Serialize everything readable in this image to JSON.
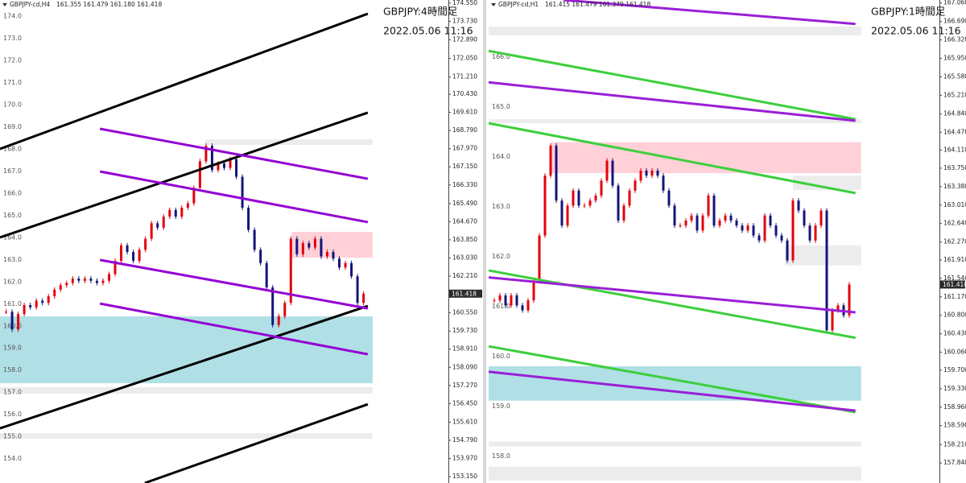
{
  "chart_data": [
    {
      "type": "candlestick",
      "symbol": "GBPJPY-cd,H4",
      "ohlc": "161.355 161.479 161.180 161.418",
      "title": "GBPJPY:4時間足",
      "subtitle": "2022.05.06 11:16",
      "xlim": [
        -1,
        73
      ],
      "ylim": [
        152.86,
        174.69
      ],
      "up_color": "#e3000b",
      "down_color": "#14147a",
      "closes": [
        160.6,
        159.8,
        160.5,
        160.9,
        160.8,
        161.1,
        161.0,
        161.3,
        161.6,
        161.8,
        161.9,
        162.1,
        162.0,
        162.1,
        162.0,
        161.9,
        162.0,
        162.3,
        162.9,
        163.6,
        163.3,
        162.9,
        163.4,
        163.9,
        164.6,
        164.4,
        164.9,
        165.2,
        164.9,
        165.3,
        165.5,
        166.2,
        167.4,
        168.1,
        167.0,
        167.3,
        167.1,
        167.5,
        166.7,
        165.3,
        164.3,
        163.4,
        162.8,
        161.7,
        160.0,
        160.4,
        161.0,
        163.9,
        163.2,
        163.7,
        163.5,
        163.9,
        163.1,
        163.3,
        163.0,
        162.6,
        162.8,
        162.2,
        161.0,
        161.418
      ],
      "yticks": [
        {
          "value": 174.55,
          "label": "174.550"
        },
        {
          "value": 173.73,
          "label": "173.730"
        },
        {
          "value": 172.89,
          "label": "172.890"
        },
        {
          "value": 172.05,
          "label": "172.050"
        },
        {
          "value": 171.21,
          "label": "171.210"
        },
        {
          "value": 170.43,
          "label": "170.430"
        },
        {
          "value": 169.61,
          "label": "169.610"
        },
        {
          "value": 168.79,
          "label": "168.790"
        },
        {
          "value": 167.97,
          "label": "167.970"
        },
        {
          "value": 167.15,
          "label": "167.150"
        },
        {
          "value": 166.33,
          "label": "166.330"
        },
        {
          "value": 165.49,
          "label": "165.490"
        },
        {
          "value": 164.67,
          "label": "164.670"
        },
        {
          "value": 163.85,
          "label": "163.850"
        },
        {
          "value": 163.03,
          "label": "163.030"
        },
        {
          "value": 162.21,
          "label": "162.210"
        },
        {
          "value": 160.55,
          "label": "160.550"
        },
        {
          "value": 159.73,
          "label": "159.730"
        },
        {
          "value": 158.91,
          "label": "158.910"
        },
        {
          "value": 158.09,
          "label": "158.090"
        },
        {
          "value": 157.27,
          "label": "157.270"
        },
        {
          "value": 156.45,
          "label": "156.450"
        },
        {
          "value": 155.61,
          "label": "155.610"
        },
        {
          "value": 154.79,
          "label": "154.790"
        },
        {
          "value": 153.97,
          "label": "153.970"
        },
        {
          "value": 153.15,
          "label": "153.150"
        }
      ],
      "level_labels": [
        {
          "value": 174,
          "label": "174.0"
        },
        {
          "value": 173,
          "label": "173.0"
        },
        {
          "value": 172,
          "label": "172.0"
        },
        {
          "value": 171,
          "label": "171.0"
        },
        {
          "value": 170,
          "label": "170.0"
        },
        {
          "value": 169,
          "label": "169.0"
        },
        {
          "value": 168,
          "label": "168.0"
        },
        {
          "value": 167,
          "label": "167.0"
        },
        {
          "value": 166,
          "label": "166.0"
        },
        {
          "value": 165,
          "label": "165.0"
        },
        {
          "value": 164,
          "label": "164.0"
        },
        {
          "value": 163,
          "label": "163.0"
        },
        {
          "value": 162,
          "label": "162.0"
        },
        {
          "value": 161,
          "label": "161.0"
        },
        {
          "value": 160,
          "label": "160.0"
        },
        {
          "value": 159,
          "label": "159.0"
        },
        {
          "value": 158,
          "label": "158.0"
        },
        {
          "value": 157,
          "label": "157.0"
        },
        {
          "value": 156,
          "label": "156.0"
        },
        {
          "value": 155,
          "label": "155.0"
        },
        {
          "value": 154,
          "label": "154.0"
        }
      ],
      "current": {
        "value": 161.418,
        "label": "161.418"
      },
      "zones": [
        {
          "color": "#ffd0d8",
          "x": [
            47.1,
            60.5
          ],
          "y": [
            164.21,
            163.04
          ]
        },
        {
          "color": "#b0dfe5",
          "x": [
            -1,
            60.5
          ],
          "y": [
            160.39,
            157.37
          ]
        },
        {
          "color": "#ececec",
          "x": [
            32.9,
            60.5
          ],
          "y": [
            168.39,
            168.14
          ]
        },
        {
          "color": "#ececec",
          "x": [
            -1,
            60.5
          ],
          "y": [
            157.19,
            156.9
          ]
        },
        {
          "color": "#ececec",
          "x": [
            -1,
            60.5
          ],
          "y": [
            155.11,
            154.86
          ]
        }
      ],
      "lines": [
        {
          "color": "#000000",
          "x": [
            -1,
            59.7
          ],
          "y": [
            167.96,
            174.07
          ]
        },
        {
          "color": "#000000",
          "x": [
            -1,
            59.7
          ],
          "y": [
            163.96,
            169.6
          ]
        },
        {
          "color": "#000000",
          "x": [
            -1,
            59.7
          ],
          "y": [
            155.33,
            160.86
          ]
        },
        {
          "color": "#000000",
          "x": [
            22.9,
            59.7
          ],
          "y": [
            152.86,
            156.42
          ]
        },
        {
          "color": "#9400d3",
          "x": [
            15.5,
            59.7
          ],
          "y": [
            168.87,
            166.61
          ]
        },
        {
          "color": "#9400d3",
          "x": [
            15.5,
            59.7
          ],
          "y": [
            166.94,
            164.65
          ]
        },
        {
          "color": "#9400d3",
          "x": [
            15.5,
            59.7
          ],
          "y": [
            162.94,
            160.75
          ]
        },
        {
          "color": "#9400d3",
          "x": [
            15.5,
            59.7
          ],
          "y": [
            160.97,
            158.68
          ]
        }
      ]
    },
    {
      "type": "candlestick",
      "symbol": "GBPJPY-cd,H1",
      "ohlc": "161.415 161.479 161.379 161.418",
      "title": "GBPJPY:1時間足",
      "subtitle": "2022.05.06 11:16",
      "xlim": [
        -1,
        79
      ],
      "ylim": [
        157.44,
        167.12
      ],
      "up_color": "#e3000b",
      "down_color": "#14147a",
      "closes": [
        161.1,
        161.2,
        161.0,
        161.2,
        161.0,
        160.9,
        161.1,
        161.5,
        162.4,
        163.6,
        164.2,
        163.1,
        162.6,
        163.0,
        163.3,
        163.0,
        163.0,
        163.1,
        163.2,
        163.5,
        163.9,
        163.4,
        162.7,
        163.0,
        163.3,
        163.5,
        163.7,
        163.6,
        163.7,
        163.6,
        163.3,
        163.0,
        162.6,
        162.6,
        162.7,
        162.8,
        162.5,
        162.8,
        163.2,
        162.6,
        162.7,
        162.8,
        162.7,
        162.6,
        162.5,
        162.6,
        162.4,
        162.3,
        162.8,
        162.6,
        162.4,
        162.3,
        161.9,
        163.1,
        162.9,
        162.6,
        162.3,
        162.6,
        162.9,
        160.5,
        160.9,
        161.0,
        160.8,
        161.418
      ],
      "yticks": [
        {
          "value": 167.06,
          "label": "167.060"
        },
        {
          "value": 166.69,
          "label": "166.690"
        },
        {
          "value": 166.32,
          "label": "166.320"
        },
        {
          "value": 165.95,
          "label": "165.950"
        },
        {
          "value": 165.58,
          "label": "165.580"
        },
        {
          "value": 165.21,
          "label": "165.210"
        },
        {
          "value": 164.84,
          "label": "164.840"
        },
        {
          "value": 164.47,
          "label": "164.470"
        },
        {
          "value": 164.11,
          "label": "164.110"
        },
        {
          "value": 163.75,
          "label": "163.750"
        },
        {
          "value": 163.38,
          "label": "163.380"
        },
        {
          "value": 163.01,
          "label": "163.010"
        },
        {
          "value": 162.64,
          "label": "162.640"
        },
        {
          "value": 162.27,
          "label": "162.270"
        },
        {
          "value": 161.91,
          "label": "161.910"
        },
        {
          "value": 161.54,
          "label": "161.540"
        },
        {
          "value": 161.17,
          "label": "161.170"
        },
        {
          "value": 160.8,
          "label": "160.800"
        },
        {
          "value": 160.43,
          "label": "160.430"
        },
        {
          "value": 160.06,
          "label": "160.060"
        },
        {
          "value": 159.7,
          "label": "159.700"
        },
        {
          "value": 159.33,
          "label": "159.330"
        },
        {
          "value": 158.96,
          "label": "158.960"
        },
        {
          "value": 158.59,
          "label": "158.590"
        },
        {
          "value": 158.21,
          "label": "158.210"
        },
        {
          "value": 157.84,
          "label": "157.840"
        }
      ],
      "level_labels": [
        {
          "value": 166,
          "label": "166.0"
        },
        {
          "value": 165,
          "label": "165.0"
        },
        {
          "value": 164,
          "label": "164.0"
        },
        {
          "value": 163,
          "label": "163.0"
        },
        {
          "value": 162,
          "label": "162.0"
        },
        {
          "value": 161,
          "label": "161.0"
        },
        {
          "value": 160,
          "label": "160.0"
        },
        {
          "value": 159,
          "label": "159.0"
        },
        {
          "value": 158,
          "label": "158.0"
        }
      ],
      "current": {
        "value": 161.418,
        "label": "161.418"
      },
      "zones": [
        {
          "color": "#ffd0d8",
          "x": [
            10.1,
            65.1
          ],
          "y": [
            164.27,
            163.65
          ]
        },
        {
          "color": "#ececec",
          "x": [
            -1,
            65.1
          ],
          "y": [
            166.59,
            166.41
          ]
        },
        {
          "color": "#ececec",
          "x": [
            -1,
            65.1
          ],
          "y": [
            164.73,
            164.65
          ]
        },
        {
          "color": "#ececec",
          "x": [
            53,
            65.1
          ],
          "y": [
            163.6,
            163.31
          ]
        },
        {
          "color": "#ececec",
          "x": [
            51.6,
            65.1
          ],
          "y": [
            162.2,
            161.8
          ]
        },
        {
          "color": "#b0dfe5",
          "x": [
            -1,
            65.1
          ],
          "y": [
            159.78,
            159.09
          ]
        },
        {
          "color": "#ececec",
          "x": [
            -1,
            65.1
          ],
          "y": [
            158.27,
            158.17
          ]
        },
        {
          "color": "#ececec",
          "x": [
            -1,
            65.1
          ],
          "y": [
            157.77,
            157.49
          ]
        }
      ],
      "lines": [
        {
          "color": "#3ccf3c",
          "x": [
            -1,
            64.1
          ],
          "y": [
            166.1,
            164.73
          ]
        },
        {
          "color": "#3ccf3c",
          "x": [
            -1,
            64.1
          ],
          "y": [
            164.65,
            163.25
          ]
        },
        {
          "color": "#3ccf3c",
          "x": [
            -1,
            64.1
          ],
          "y": [
            161.7,
            160.35
          ]
        },
        {
          "color": "#3ccf3c",
          "x": [
            -1,
            64.1
          ],
          "y": [
            160.18,
            158.86
          ]
        },
        {
          "color": "#9a1fd6",
          "x": [
            12.3,
            64.1
          ],
          "y": [
            167.12,
            166.64
          ]
        },
        {
          "color": "#9a1fd6",
          "x": [
            -1,
            64.1
          ],
          "y": [
            165.47,
            164.7
          ]
        },
        {
          "color": "#9a1fd6",
          "x": [
            -1,
            64.1
          ],
          "y": [
            161.56,
            160.86
          ]
        },
        {
          "color": "#9a1fd6",
          "x": [
            -1,
            64.1
          ],
          "y": [
            159.67,
            158.89
          ]
        }
      ]
    }
  ]
}
